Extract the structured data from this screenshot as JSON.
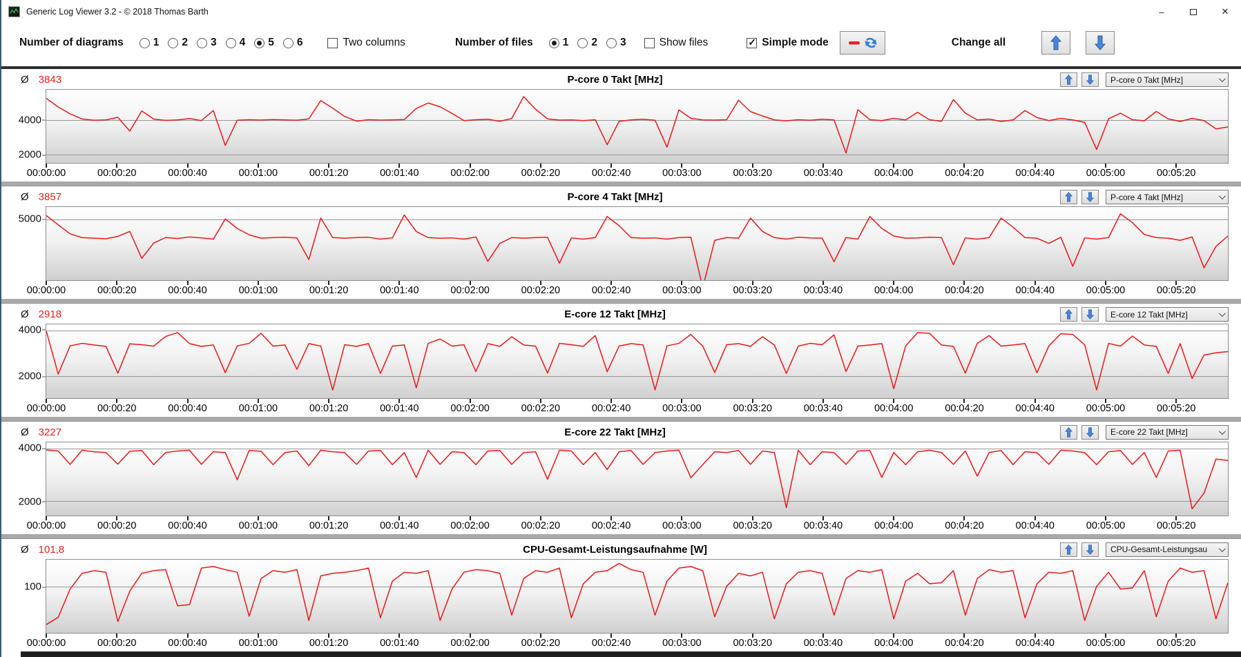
{
  "window": {
    "title": "Generic Log Viewer 3.2 - © 2018 Thomas Barth",
    "minimize_glyph": "–",
    "close_glyph": "✕"
  },
  "colors": {
    "line_red": "#ec1616",
    "average_red": "#e5201e",
    "arrow_blue": "#4a86d8",
    "arrow_blue_dark": "#265ba8",
    "refresh_red": "#e32222",
    "refresh_blue": "#2f7fd6"
  },
  "toolbar": {
    "diagrams_label": "Number of diagrams",
    "diagram_options": [
      "1",
      "2",
      "3",
      "4",
      "5",
      "6"
    ],
    "diagrams_selected": "5",
    "two_columns_label": "Two columns",
    "two_columns_checked": false,
    "files_label": "Number of files",
    "file_options": [
      "1",
      "2",
      "3"
    ],
    "files_selected": "1",
    "show_files_label": "Show files",
    "show_files_checked": false,
    "simple_mode_label": "Simple mode",
    "simple_mode_checked": true,
    "change_all_label": "Change all"
  },
  "axis": {
    "ticks": [
      "00:00:00",
      "00:00:20",
      "00:00:40",
      "00:01:00",
      "00:01:20",
      "00:01:40",
      "00:02:00",
      "00:02:20",
      "00:02:40",
      "00:03:00",
      "00:03:20",
      "00:03:40",
      "00:04:00",
      "00:04:20",
      "00:04:40",
      "00:05:00",
      "00:05:20"
    ],
    "tick_interval_seconds": 20,
    "total_seconds": 335
  },
  "panels": [
    {
      "avg_symbol": "Ø",
      "average": "3843",
      "title": "P-core 0 Takt [MHz]",
      "dropdown": "P-core 0 Takt [MHz]"
    },
    {
      "avg_symbol": "Ø",
      "average": "3857",
      "title": "P-core 4 Takt [MHz]",
      "dropdown": "P-core 4 Takt [MHz]"
    },
    {
      "avg_symbol": "Ø",
      "average": "2918",
      "title": "E-core 12 Takt [MHz]",
      "dropdown": "E-core 12 Takt [MHz]"
    },
    {
      "avg_symbol": "Ø",
      "average": "3227",
      "title": "E-core 22 Takt [MHz]",
      "dropdown": "E-core 22 Takt [MHz]"
    },
    {
      "avg_symbol": "Ø",
      "average": "101,8",
      "title": "CPU-Gesamt-Leistungsaufnahme [W]",
      "dropdown": "CPU-Gesamt-Leistungsau"
    }
  ],
  "chart_data": [
    {
      "type": "line",
      "title": "P-core 0 Takt [MHz]",
      "ylabel": "MHz",
      "ylim": [
        1500,
        5750
      ],
      "gridlines": [
        4000,
        2000
      ],
      "x_interval_seconds": 3.38,
      "values": [
        5250,
        4750,
        4350,
        4050,
        3980,
        4000,
        4150,
        3350,
        4520,
        4050,
        3970,
        4000,
        4080,
        3960,
        4540,
        2520,
        3980,
        4010,
        3990,
        4020,
        4000,
        3980,
        4060,
        5120,
        4680,
        4200,
        3930,
        4010,
        3990,
        4000,
        4020,
        4660,
        4980,
        4760,
        4380,
        3960,
        4010,
        4040,
        3920,
        4080,
        5350,
        4620,
        4060,
        3990,
        4000,
        3960,
        4010,
        2560,
        3920,
        4000,
        4040,
        3980,
        2420,
        4580,
        4090,
        4000,
        3990,
        4010,
        5140,
        4480,
        4230,
        4000,
        3950,
        4010,
        3980,
        4040,
        4000,
        2080,
        4590,
        4010,
        3960,
        4090,
        4000,
        4440,
        4010,
        3920,
        5180,
        4390,
        4000,
        4050,
        3910,
        4000,
        4540,
        4140,
        3960,
        4090,
        4000,
        3860,
        2280,
        4060,
        4390,
        4010,
        3950,
        4490,
        4060,
        3910,
        4090,
        3960,
        3480,
        3590
      ]
    },
    {
      "type": "line",
      "title": "P-core 4 Takt [MHz]",
      "ylabel": "MHz",
      "ylim": [
        3000,
        5400
      ],
      "gridlines": [
        5000
      ],
      "x_interval_seconds": 3.38,
      "values": [
        5120,
        4820,
        4520,
        4400,
        4380,
        4360,
        4440,
        4600,
        3720,
        4220,
        4400,
        4370,
        4420,
        4390,
        4350,
        5010,
        4700,
        4490,
        4380,
        4400,
        4410,
        4390,
        3680,
        5040,
        4400,
        4380,
        4400,
        4410,
        4350,
        4390,
        5140,
        4600,
        4400,
        4380,
        4390,
        4350,
        4420,
        3620,
        4210,
        4400,
        4380,
        4400,
        4410,
        3560,
        4390,
        4350,
        4400,
        5090,
        4790,
        4400,
        4380,
        4390,
        4350,
        4400,
        4410,
        2760,
        4310,
        4400,
        4380,
        5040,
        4600,
        4400,
        4350,
        4410,
        4390,
        4380,
        3610,
        4400,
        4350,
        5090,
        4700,
        4450,
        4380,
        4390,
        4410,
        4400,
        3510,
        4390,
        4350,
        4400,
        5040,
        4740,
        4400,
        4380,
        4210,
        4410,
        3460,
        4390,
        4350,
        4400,
        5180,
        4890,
        4500,
        4400,
        4380,
        4310,
        4420,
        3410,
        4110,
        4450
      ]
    },
    {
      "type": "line",
      "title": "E-core 12 Takt [MHz]",
      "ylabel": "MHz",
      "ylim": [
        1050,
        4250
      ],
      "gridlines": [
        4000,
        2000
      ],
      "x_interval_seconds": 3.38,
      "values": [
        3960,
        2080,
        3310,
        3420,
        3350,
        3290,
        2120,
        3400,
        3360,
        3300,
        3720,
        3890,
        3410,
        3290,
        3350,
        2140,
        3310,
        3420,
        3860,
        3300,
        3350,
        2290,
        3410,
        3300,
        1380,
        3360,
        3290,
        3410,
        2110,
        3300,
        3350,
        1480,
        3420,
        3610,
        3300,
        3360,
        2190,
        3410,
        3290,
        3710,
        3350,
        3300,
        2120,
        3420,
        3360,
        3290,
        3760,
        2180,
        3300,
        3410,
        3350,
        1390,
        3310,
        3420,
        3810,
        3300,
        2150,
        3360,
        3410,
        3290,
        3710,
        3350,
        2110,
        3300,
        3420,
        3360,
        3790,
        2190,
        3300,
        3350,
        3410,
        1440,
        3310,
        3890,
        3860,
        3350,
        3290,
        2120,
        3420,
        3760,
        3300,
        3350,
        3410,
        2140,
        3310,
        3840,
        3810,
        3360,
        1390,
        3420,
        3300,
        3740,
        3350,
        3290,
        2110,
        3410,
        1890,
        2910,
        3010,
        3060
      ]
    },
    {
      "type": "line",
      "title": "E-core 22 Takt [MHz]",
      "ylabel": "MHz",
      "ylim": [
        1450,
        4250
      ],
      "gridlines": [
        4000,
        2000
      ],
      "x_interval_seconds": 3.38,
      "values": [
        3960,
        3920,
        3410,
        3950,
        3890,
        3860,
        3420,
        3910,
        3940,
        3400,
        3860,
        3920,
        3950,
        3410,
        3890,
        3860,
        2820,
        3940,
        3910,
        3400,
        3860,
        3920,
        3360,
        3950,
        3890,
        3860,
        3410,
        3920,
        3940,
        3400,
        3860,
        2910,
        3950,
        3410,
        3890,
        3860,
        3400,
        3920,
        3940,
        3410,
        3860,
        3890,
        2840,
        3950,
        3920,
        3400,
        3860,
        3210,
        3890,
        3940,
        3410,
        3860,
        3920,
        3950,
        2900,
        3400,
        3890,
        3860,
        3940,
        3410,
        3920,
        3860,
        1760,
        3950,
        3400,
        3890,
        3860,
        3410,
        3920,
        3940,
        2910,
        3860,
        3400,
        3890,
        3950,
        3860,
        3410,
        3920,
        2960,
        3860,
        3940,
        3400,
        3890,
        3860,
        3410,
        3950,
        3920,
        3860,
        3400,
        3890,
        3940,
        3410,
        3860,
        2910,
        3920,
        3950,
        1710,
        2310,
        3610,
        3560
      ]
    },
    {
      "type": "line",
      "title": "CPU-Gesamt-Leistungsaufnahme [W]",
      "ylabel": "W",
      "ylim": [
        12,
        152
      ],
      "gridlines": [
        100
      ],
      "x_interval_seconds": 3.38,
      "values": [
        28,
        42,
        96,
        126,
        131,
        128,
        34,
        92,
        126,
        131,
        133,
        64,
        66,
        136,
        139,
        133,
        128,
        44,
        116,
        131,
        128,
        133,
        36,
        121,
        126,
        128,
        131,
        136,
        41,
        111,
        128,
        126,
        131,
        36,
        96,
        128,
        133,
        131,
        126,
        46,
        116,
        131,
        128,
        136,
        41,
        106,
        128,
        131,
        145,
        133,
        128,
        46,
        111,
        136,
        139,
        131,
        43,
        101,
        126,
        121,
        128,
        39,
        106,
        128,
        131,
        126,
        46,
        116,
        131,
        128,
        133,
        39,
        111,
        126,
        106,
        108,
        131,
        46,
        116,
        133,
        128,
        131,
        41,
        106,
        128,
        126,
        131,
        36,
        101,
        128,
        96,
        98,
        131,
        43,
        111,
        136,
        128,
        131,
        39,
        108
      ]
    }
  ]
}
